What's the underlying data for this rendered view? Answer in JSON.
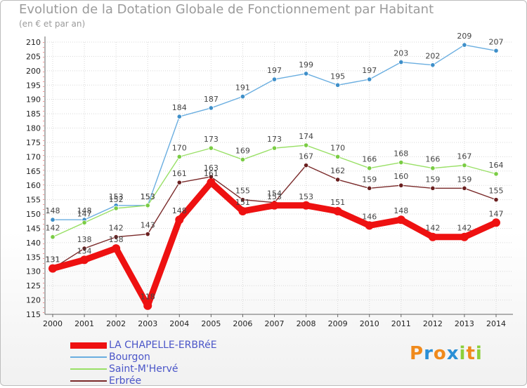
{
  "header": {
    "title": "Evolution de la Dotation Globale de Fonctionnement par Habitant",
    "subtitle": "(en € et par an)"
  },
  "logo": {
    "text": "Proxiti"
  },
  "chart_data": {
    "type": "line",
    "title": "Evolution de la Dotation Globale de Fonctionnement par Habitant",
    "subtitle": "(en € et par an)",
    "xlabel": "",
    "ylabel": "",
    "ylim": [
      115,
      210
    ],
    "yticks": [
      115,
      120,
      125,
      130,
      135,
      140,
      145,
      150,
      155,
      160,
      165,
      170,
      175,
      180,
      185,
      190,
      195,
      200,
      205,
      210
    ],
    "grid": true,
    "legend_position": "bottom-left",
    "x": [
      "2000",
      "2001",
      "2002",
      "2003",
      "2004",
      "2005",
      "2006",
      "2007",
      "2008",
      "2009",
      "2010",
      "2011",
      "2012",
      "2013",
      "2014"
    ],
    "series": [
      {
        "name": "Bourgon",
        "color": "#6aaee0",
        "marker": "#3e8fc9",
        "values": [
          148,
          148,
          153,
          153,
          184,
          187,
          191,
          197,
          199,
          195,
          197,
          203,
          202,
          209,
          207
        ]
      },
      {
        "name": "Saint-M'Hervé",
        "color": "#99e066",
        "marker": "#7acc44",
        "values": [
          142,
          147,
          152,
          153,
          170,
          173,
          169,
          173,
          174,
          170,
          166,
          168,
          166,
          167,
          164
        ]
      },
      {
        "name": "Erbrée",
        "color": "#7a2a2a",
        "marker": "#6a1f1f",
        "values": [
          131,
          138,
          142,
          143,
          161,
          163,
          155,
          154,
          167,
          162,
          159,
          160,
          159,
          159,
          155
        ]
      },
      {
        "name": "LA CHAPELLE-ERBRéE",
        "color": "#ee1111",
        "marker": "#ee1111",
        "values": [
          131,
          134,
          138,
          118,
          148,
          161,
          151,
          153,
          153,
          151,
          146,
          148,
          142,
          142,
          147
        ]
      }
    ]
  }
}
